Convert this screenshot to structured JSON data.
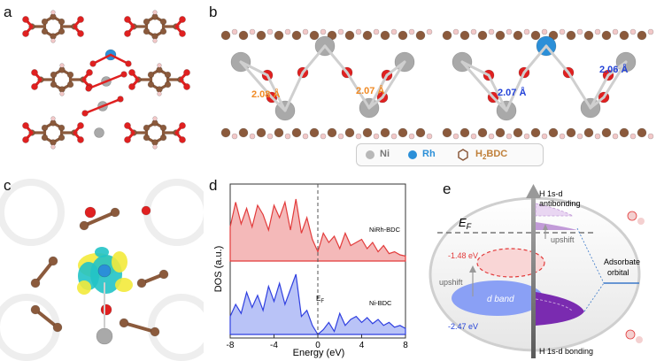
{
  "panels": {
    "a": {
      "label": "a"
    },
    "b": {
      "label": "b",
      "bond_left_1": "2.08 Å",
      "bond_left_2": "2.07 Å",
      "bond_right_1": "2.07 Å",
      "bond_right_2": "2.06 Å"
    },
    "legend": {
      "ni": "Ni",
      "rh": "Rh",
      "bdc_prefix": "H",
      "bdc_sub": "2",
      "bdc_suffix": "BDC"
    },
    "c": {
      "label": "c"
    },
    "d": {
      "label": "d"
    },
    "e": {
      "label": "e",
      "ef": "E",
      "ef_sub": "F",
      "energy_1": "-1.48 eV",
      "energy_2": "-2.47 eV",
      "antibonding_1": "H 1s-d",
      "antibonding_2": "antibonding",
      "bonding": "H 1s-d bonding",
      "upshift_1": "upshift",
      "upshift_2": "upshift",
      "adsorbate_1": "Adsorbate",
      "adsorbate_2": "orbital",
      "dband": "d band"
    }
  },
  "colors": {
    "ni": "#a9a9a9",
    "rh": "#2b8fd8",
    "o": "#e02020",
    "c": "#8b5a3c",
    "h": "#f2c8c8",
    "red_dos": "#e23b3b",
    "blue_dos": "#2f3fe0",
    "orange": "#f08a24",
    "blue_text": "#2342d8"
  },
  "chart_data": {
    "type": "area",
    "xlabel": "Energy (eV)",
    "ylabel": "DOS (a.u.)",
    "xlim": [
      -8,
      8
    ],
    "x_ticks": [
      "-8",
      "-4",
      "0",
      "4",
      "8"
    ],
    "fermi_label": "E",
    "fermi_sub": "F",
    "series": [
      {
        "name": "NiRh-BDC",
        "x": [
          -8,
          -7.5,
          -7,
          -6.5,
          -6,
          -5.5,
          -5,
          -4.5,
          -4,
          -3.5,
          -3,
          -2.5,
          -2,
          -1.5,
          -1,
          -0.5,
          0,
          0.5,
          1,
          1.5,
          2,
          2.5,
          3,
          3.5,
          4,
          4.5,
          5,
          5.5,
          6,
          6.5,
          7,
          7.5,
          8
        ],
        "y": [
          0.55,
          0.95,
          0.6,
          0.85,
          0.55,
          0.9,
          0.75,
          0.5,
          0.9,
          0.7,
          0.95,
          0.5,
          1.0,
          0.45,
          0.7,
          0.35,
          0.15,
          0.45,
          0.3,
          0.4,
          0.2,
          0.45,
          0.25,
          0.3,
          0.35,
          0.2,
          0.3,
          0.15,
          0.25,
          0.12,
          0.15,
          0.1,
          0.08
        ]
      },
      {
        "name": "Ni-BDC",
        "x": [
          -8,
          -7.5,
          -7,
          -6.5,
          -6,
          -5.5,
          -5,
          -4.5,
          -4,
          -3.5,
          -3,
          -2.5,
          -2,
          -1.5,
          -1,
          -0.5,
          0,
          0.5,
          1,
          1.5,
          2,
          2.5,
          3,
          3.5,
          4,
          4.5,
          5,
          5.5,
          6,
          6.5,
          7,
          7.5,
          8
        ],
        "y": [
          0.3,
          0.5,
          0.35,
          0.7,
          0.45,
          0.65,
          0.4,
          0.8,
          0.55,
          0.85,
          0.5,
          0.75,
          1.0,
          0.3,
          0.4,
          0.15,
          0.0,
          0.08,
          0.2,
          0.05,
          0.35,
          0.15,
          0.25,
          0.3,
          0.2,
          0.28,
          0.18,
          0.25,
          0.15,
          0.2,
          0.12,
          0.15,
          0.1
        ]
      }
    ]
  }
}
